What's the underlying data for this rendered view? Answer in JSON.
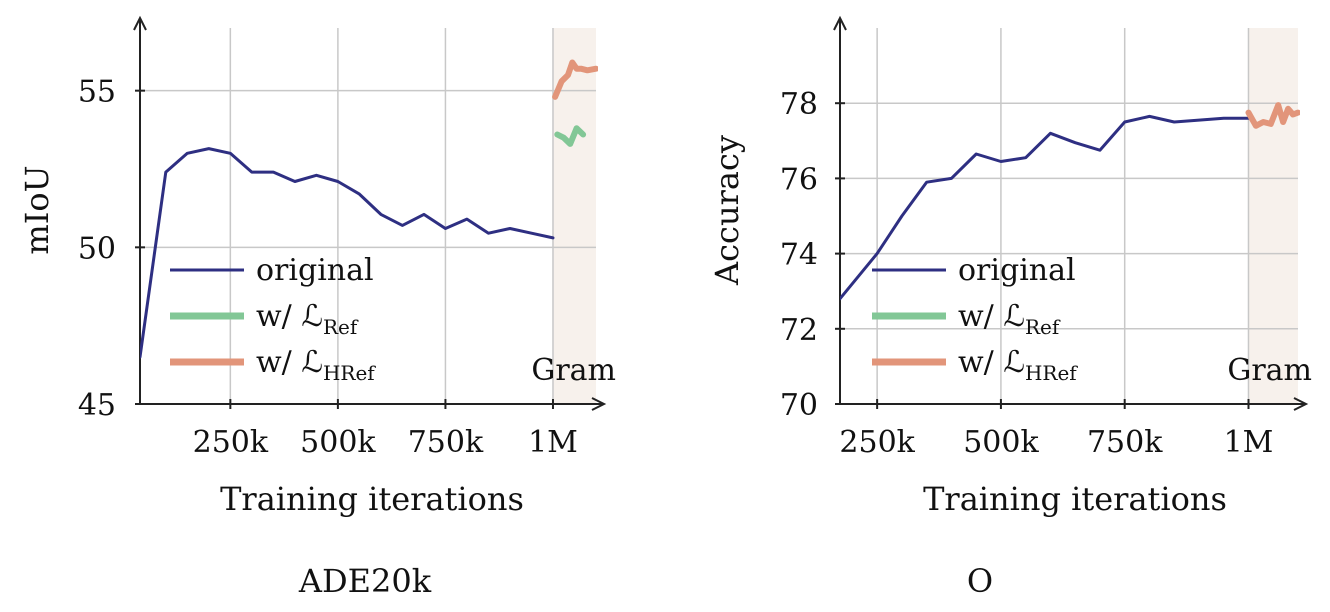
{
  "chart_data": [
    {
      "type": "line",
      "panel_caption": "ADE20k",
      "xlabel": "Training iterations",
      "ylabel": "mIoU",
      "xlim": [
        40000,
        1100000
      ],
      "ylim": [
        45,
        57
      ],
      "xticks": [
        {
          "value": 250000,
          "label": "250k"
        },
        {
          "value": 500000,
          "label": "500k"
        },
        {
          "value": 750000,
          "label": "750k"
        },
        {
          "value": 1000000,
          "label": "1M"
        }
      ],
      "yticks": [
        {
          "value": 45,
          "label": "45"
        },
        {
          "value": 50,
          "label": "50"
        },
        {
          "value": 55,
          "label": "55"
        }
      ],
      "grid": true,
      "shaded_region": {
        "x_start": 1000000,
        "x_end": 1100000,
        "label": "Gram",
        "color": "#f7f1ec"
      },
      "legend_position": "bottom-left",
      "series": [
        {
          "name": "original",
          "color": "#2e2f82",
          "x": [
            40000,
            100000,
            150000,
            200000,
            250000,
            300000,
            350000,
            400000,
            450000,
            500000,
            550000,
            600000,
            650000,
            700000,
            750000,
            800000,
            850000,
            900000,
            950000,
            1000000
          ],
          "y": [
            46.5,
            52.4,
            53.0,
            53.15,
            53.0,
            52.4,
            52.4,
            52.1,
            52.3,
            52.1,
            51.7,
            51.05,
            50.7,
            51.05,
            50.6,
            50.9,
            50.45,
            50.6,
            50.45,
            50.3
          ]
        },
        {
          "name": "w/ ℒ",
          "name_sub": "Ref",
          "color": "#82c796",
          "x": [
            1010000,
            1025000,
            1040000,
            1055000,
            1070000
          ],
          "y": [
            53.6,
            53.5,
            53.3,
            53.8,
            53.6
          ]
        },
        {
          "name": "w/ ℒ",
          "name_sub": "HRef",
          "color": "#e2957a",
          "x": [
            1005000,
            1020000,
            1035000,
            1045000,
            1055000,
            1065000,
            1080000,
            1100000
          ],
          "y": [
            54.8,
            55.3,
            55.5,
            55.9,
            55.7,
            55.7,
            55.65,
            55.7
          ]
        }
      ]
    },
    {
      "type": "line",
      "panel_caption": "O",
      "xlabel": "Training iterations",
      "ylabel": "Accuracy",
      "xlim": [
        175000,
        1100000
      ],
      "ylim": [
        70,
        80
      ],
      "xticks": [
        {
          "value": 250000,
          "label": "250k"
        },
        {
          "value": 500000,
          "label": "500k"
        },
        {
          "value": 750000,
          "label": "750k"
        },
        {
          "value": 1000000,
          "label": "1M"
        }
      ],
      "yticks": [
        {
          "value": 70,
          "label": "70"
        },
        {
          "value": 72,
          "label": "72"
        },
        {
          "value": 74,
          "label": "74"
        },
        {
          "value": 76,
          "label": "76"
        },
        {
          "value": 78,
          "label": "78"
        }
      ],
      "grid": true,
      "shaded_region": {
        "x_start": 1000000,
        "x_end": 1100000,
        "label": "Gram",
        "color": "#f7f1ec"
      },
      "legend_position": "bottom-left",
      "series": [
        {
          "name": "original",
          "color": "#2e2f82",
          "x": [
            175000,
            250000,
            300000,
            350000,
            400000,
            450000,
            500000,
            550000,
            600000,
            650000,
            700000,
            750000,
            800000,
            850000,
            900000,
            950000,
            1000000
          ],
          "y": [
            72.8,
            74.0,
            75.0,
            75.9,
            76.0,
            76.65,
            76.45,
            76.55,
            77.2,
            76.95,
            76.75,
            77.5,
            77.65,
            77.5,
            77.55,
            77.6,
            77.6
          ]
        },
        {
          "name": "w/ ℒ",
          "name_sub": "Ref",
          "color": "#82c796",
          "x": [],
          "y": []
        },
        {
          "name": "w/ ℒ",
          "name_sub": "HRef",
          "color": "#e2957a",
          "x": [
            1000000,
            1015000,
            1030000,
            1045000,
            1060000,
            1070000,
            1080000,
            1090000,
            1100000
          ],
          "y": [
            77.75,
            77.4,
            77.5,
            77.45,
            77.95,
            77.5,
            77.85,
            77.7,
            77.75
          ]
        }
      ]
    }
  ]
}
